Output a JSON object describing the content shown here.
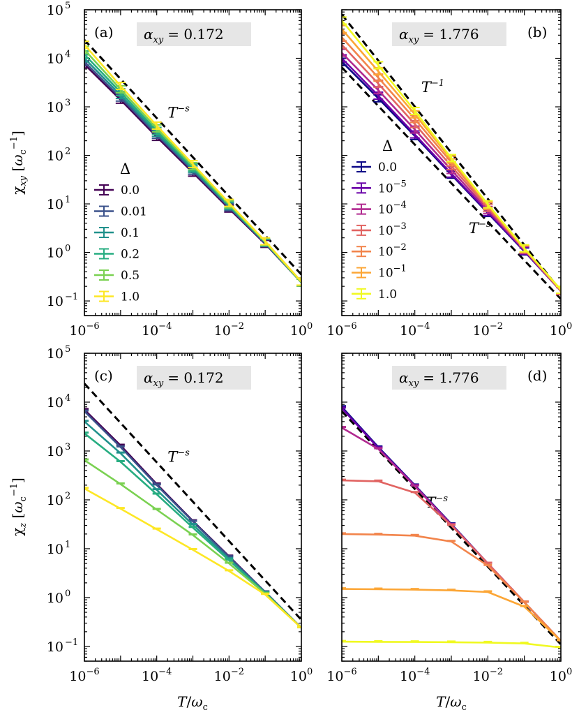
{
  "figure": {
    "xlabel_main": "T",
    "xlabel_sub": "c",
    "ylabel_unit_sub": "c",
    "ylabel_unit_sup": "−1",
    "rows": [
      {
        "ylabel_main": "χ",
        "ylabel_sub": "xy"
      },
      {
        "ylabel_main": "χ",
        "ylabel_sub": "z"
      }
    ]
  },
  "chart_data": [
    {
      "id": "a",
      "type": "line",
      "panel_label": "(a)",
      "alpha_symbol": "α",
      "alpha_sub": "xy",
      "alpha_value": "= 0.172",
      "xscale": "log",
      "yscale": "log",
      "xlim": [
        1e-06,
        1
      ],
      "ylim": [
        0.05,
        100000
      ],
      "legend": {
        "title": "Δ",
        "location": "lower-left"
      },
      "x": [
        1e-06,
        1e-05,
        0.0001,
        0.001,
        0.01,
        0.1,
        1
      ],
      "series": [
        {
          "name": "0.0",
          "color": "#440154",
          "values": [
            7500,
            1400,
            240,
            44,
            8.0,
            1.5,
            0.24
          ]
        },
        {
          "name": "0.01",
          "color": "#3b528b",
          "values": [
            8500,
            1550,
            265,
            48,
            8.5,
            1.55,
            0.24
          ]
        },
        {
          "name": "0.1",
          "color": "#21918c",
          "values": [
            10000,
            1750,
            290,
            52,
            9.0,
            1.6,
            0.24
          ]
        },
        {
          "name": "0.2",
          "color": "#27ad81",
          "values": [
            12000,
            2000,
            320,
            56,
            9.4,
            1.6,
            0.24
          ]
        },
        {
          "name": "0.5",
          "color": "#7ad151",
          "values": [
            15000,
            2300,
            360,
            60,
            9.8,
            1.65,
            0.24
          ]
        },
        {
          "name": "1.0",
          "color": "#fde725",
          "values": [
            19000,
            2700,
            410,
            66,
            10.5,
            1.7,
            0.25
          ]
        }
      ],
      "reference_lines": [
        {
          "label_main": "T",
          "label_sup": "−s",
          "x": [
            1e-06,
            1
          ],
          "y": [
            24000,
            0.35
          ],
          "label_at": [
            0.0002,
            600
          ]
        }
      ]
    },
    {
      "id": "b",
      "type": "line",
      "panel_label": "(b)",
      "alpha_symbol": "α",
      "alpha_sub": "xy",
      "alpha_value": "= 1.776",
      "xscale": "log",
      "yscale": "log",
      "xlim": [
        1e-06,
        1
      ],
      "ylim": [
        0.05,
        100000
      ],
      "legend": {
        "title": "Δ",
        "location": "lower-left"
      },
      "x": [
        1e-06,
        1e-05,
        0.0001,
        0.001,
        0.01,
        0.1,
        1
      ],
      "series": [
        {
          "name": "0.0",
          "color": "#0d0887",
          "values": [
            8500,
            1500,
            250,
            40,
            6.5,
            1.05,
            0.16
          ]
        },
        {
          "name": "10",
          "sup": "−5",
          "color": "#6a00a8",
          "values": [
            10000,
            1700,
            270,
            42,
            6.8,
            1.08,
            0.16
          ]
        },
        {
          "name": "10",
          "sup": "−4",
          "color": "#b12a90",
          "values": [
            13000,
            2200,
            340,
            50,
            7.5,
            1.12,
            0.16
          ]
        },
        {
          "name": "10",
          "sup": "−3",
          "color": "#e16462",
          "values": [
            19000,
            3000,
            440,
            60,
            8.3,
            1.15,
            0.16
          ]
        },
        {
          "name": "10",
          "sup": "−2",
          "color": "#f2844b",
          "values": [
            27000,
            4000,
            560,
            72,
            9.0,
            1.18,
            0.17
          ]
        },
        {
          "name": "10",
          "sup": "−1",
          "color": "#fca636",
          "values": [
            40000,
            5400,
            700,
            82,
            9.5,
            1.2,
            0.17
          ]
        },
        {
          "name": "1.0",
          "color": "#f0f921",
          "values": [
            60000,
            7200,
            820,
            88,
            9.8,
            1.22,
            0.17
          ]
        }
      ],
      "reference_lines": [
        {
          "label_main": "T",
          "label_sup": "−1",
          "x": [
            1e-06,
            1
          ],
          "y": [
            80000,
            0.16
          ],
          "label_at": [
            0.00015,
            2000
          ]
        },
        {
          "label_main": "T",
          "label_sup": "−s",
          "x": [
            1e-06,
            1
          ],
          "y": [
            6500,
            0.11
          ],
          "label_at": [
            0.003,
            2.5
          ]
        }
      ]
    },
    {
      "id": "c",
      "type": "line",
      "panel_label": "(c)",
      "alpha_symbol": "α",
      "alpha_sub": "xy",
      "alpha_value": "= 0.172",
      "xscale": "log",
      "yscale": "log",
      "xlim": [
        1e-06,
        1
      ],
      "ylim": [
        0.05,
        100000
      ],
      "legend": null,
      "x": [
        1e-06,
        1e-05,
        0.0001,
        0.001,
        0.01,
        0.1,
        1
      ],
      "series": [
        {
          "name": "0.0",
          "color": "#440154",
          "values": [
            7000,
            1300,
            210,
            37,
            7.0,
            1.3,
            0.24
          ]
        },
        {
          "name": "0.01",
          "color": "#3b528b",
          "values": [
            6500,
            1200,
            200,
            36,
            6.8,
            1.3,
            0.24
          ]
        },
        {
          "name": "0.1",
          "color": "#21918c",
          "values": [
            4000,
            900,
            160,
            31,
            6.2,
            1.25,
            0.24
          ]
        },
        {
          "name": "0.2",
          "color": "#27ad81",
          "values": [
            2300,
            600,
            130,
            27,
            5.8,
            1.25,
            0.24
          ]
        },
        {
          "name": "0.5",
          "color": "#7ad151",
          "values": [
            650,
            210,
            63,
            19,
            5.0,
            1.2,
            0.24
          ]
        },
        {
          "name": "1.0",
          "color": "#fde725",
          "values": [
            170,
            66,
            25,
            9.5,
            3.5,
            1.15,
            0.24
          ]
        }
      ],
      "reference_lines": [
        {
          "label_main": "T",
          "label_sup": "−s",
          "x": [
            1e-06,
            1
          ],
          "y": [
            24000,
            0.35
          ],
          "label_at": [
            0.0002,
            600
          ]
        }
      ]
    },
    {
      "id": "d",
      "type": "line",
      "panel_label": "(d)",
      "alpha_symbol": "α",
      "alpha_sub": "xy",
      "alpha_value": "= 1.776",
      "xscale": "log",
      "yscale": "log",
      "xlim": [
        1e-06,
        1
      ],
      "ylim": [
        0.05,
        100000
      ],
      "legend": null,
      "x": [
        1e-06,
        1e-05,
        0.0001,
        0.001,
        0.01,
        0.1,
        1
      ],
      "series": [
        {
          "name": "0.0",
          "color": "#0d0887",
          "values": [
            8000,
            1200,
            200,
            32,
            5.0,
            0.8,
            0.13
          ]
        },
        {
          "name": "10",
          "sup": "−5",
          "color": "#6a00a8",
          "values": [
            7500,
            1150,
            195,
            31,
            5.0,
            0.8,
            0.13
          ]
        },
        {
          "name": "10",
          "sup": "−4",
          "color": "#b12a90",
          "values": [
            3000,
            1100,
            190,
            31,
            5.0,
            0.8,
            0.13
          ]
        },
        {
          "name": "10",
          "sup": "−3",
          "color": "#e16462",
          "values": [
            250,
            240,
            140,
            30,
            5.0,
            0.8,
            0.13
          ]
        },
        {
          "name": "10",
          "sup": "−2",
          "color": "#f2844b",
          "values": [
            20,
            19.5,
            18.5,
            14,
            4.5,
            0.8,
            0.13
          ]
        },
        {
          "name": "10",
          "sup": "−1",
          "color": "#fca636",
          "values": [
            1.5,
            1.48,
            1.45,
            1.4,
            1.3,
            0.65,
            0.13
          ]
        },
        {
          "name": "1.0",
          "color": "#f0f921",
          "values": [
            0.125,
            0.124,
            0.123,
            0.122,
            0.12,
            0.115,
            0.095
          ]
        }
      ],
      "reference_lines": [
        {
          "label_main": "T",
          "label_sup": "−s",
          "x": [
            1e-06,
            1
          ],
          "y": [
            6500,
            0.11
          ],
          "label_at": [
            0.0002,
            70
          ]
        }
      ]
    }
  ]
}
